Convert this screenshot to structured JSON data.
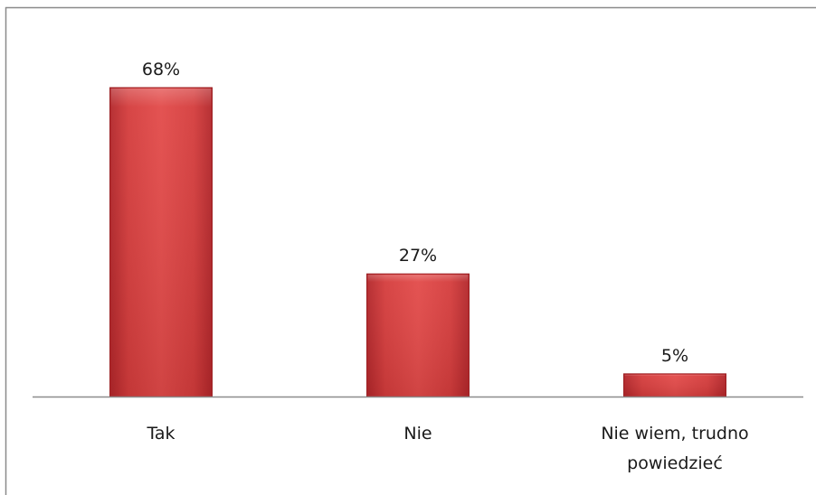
{
  "chart_data": {
    "type": "bar",
    "title": "",
    "xlabel": "",
    "ylabel": "",
    "categories": [
      "Tak",
      "Nie",
      [
        "Nie wiem, trudno",
        "powiedzieć"
      ]
    ],
    "values": [
      68,
      27,
      5
    ],
    "value_labels": [
      "68%",
      "27%",
      "5%"
    ],
    "unit": "%",
    "ylim": [
      0,
      100
    ],
    "grid": false,
    "legend": "none",
    "colors": {
      "bar_fill": "#d23a3a",
      "bar_top": "#e9605e",
      "bar_bottom": "#b2262a",
      "bar_stroke": "#9a1f22",
      "axis": "#8c8c8c",
      "text": "#1a1a1a",
      "frame": "#8a8a8a"
    }
  }
}
